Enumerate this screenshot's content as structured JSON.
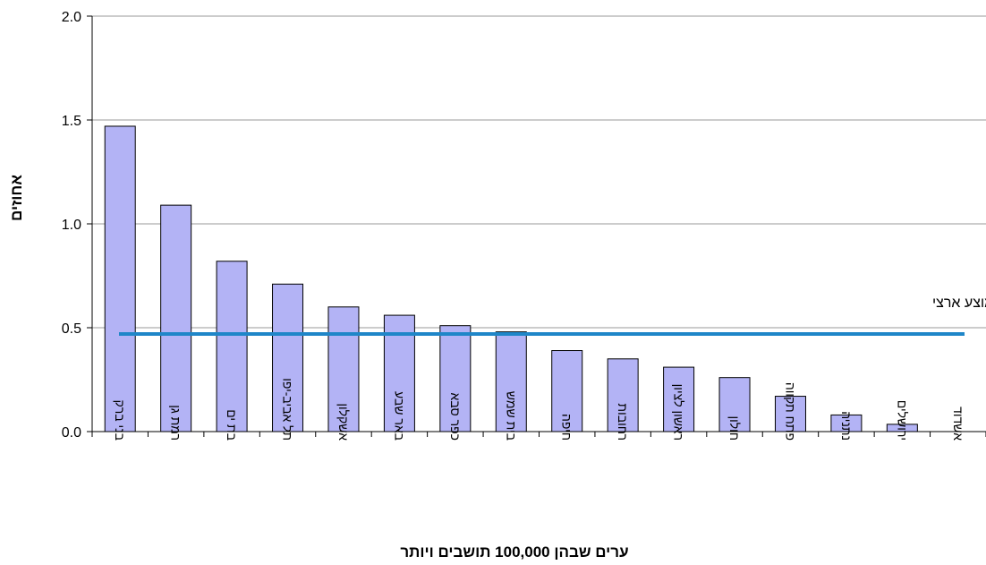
{
  "chart_data": {
    "type": "bar",
    "title": "",
    "xlabel": "ערים שבהן 100,000 תושבים ויותר",
    "ylabel": "אחוזים",
    "categories": [
      "בני ברק",
      "רמת גן",
      "בת ים",
      "תל אביב-יפו",
      "אשקלון",
      "באר שבע",
      "כפר סבא",
      "בית שמש",
      "חיפה",
      "רחובות",
      "ראשון לציון",
      "חולון",
      "פתח תקווה",
      "נתניה",
      "ירושלים",
      "אשדוד"
    ],
    "values": [
      1.47,
      1.09,
      0.82,
      0.71,
      0.6,
      0.56,
      0.51,
      0.48,
      0.39,
      0.35,
      0.31,
      0.26,
      0.17,
      0.08,
      0.035,
      0.0
    ],
    "ylim": [
      0,
      2
    ],
    "yticks": [
      "0.0",
      "0.5",
      "1.0",
      "1.5",
      "2.0"
    ],
    "grid": true,
    "bar_color": "#b3b3f5",
    "reference_line": {
      "label": "ממוצע ארצי",
      "value": 0.47,
      "color": "#1f86c8"
    }
  }
}
